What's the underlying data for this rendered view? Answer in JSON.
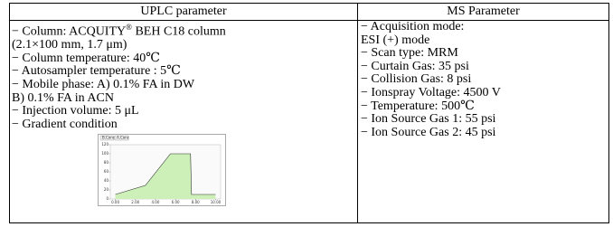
{
  "headers": [
    "UPLC parameter",
    "MS Parameter"
  ],
  "left": {
    "column": [
      "− Column: ACQUITY",
      "®",
      " BEH C18 column"
    ],
    "lines": [
      "(2.1×100 mm, 1.7 μm)",
      "− Column temperature: 40℃",
      "− Autosampler temperature : 5℃",
      "− Mobile phase: A) 0.1% FA in DW",
      "B) 0.1% FA in ACN",
      "− Injection volume: 5 μL",
      "− Gradient condition"
    ]
  },
  "right": {
    "lines": [
      "− Acquisition mode:",
      "ESI (+) mode",
      "− Scan type: MRM",
      "− Curtain Gas: 35 psi",
      "− Collision Gas: 8 psi",
      "− Ionspray Voltage: 4500 V",
      "− Temperature: 500℃",
      "− Ion Source Gas 1: 55 psi",
      "− Ion Source Gas 2: 45 psi"
    ]
  },
  "chart_data": {
    "type": "area",
    "tabs": [
      "B.Conc",
      "A.Conc"
    ],
    "color": "#ccf0b8",
    "x": [
      0,
      3,
      5.5,
      7.5,
      7.6,
      10
    ],
    "values": [
      10,
      30,
      100,
      100,
      10,
      10
    ],
    "xlim": [
      -0.5,
      10.5
    ],
    "ylim": [
      0,
      120
    ],
    "xticks": [
      {
        "value": 0,
        "label": "0.00"
      },
      {
        "value": 2,
        "label": "2.00"
      },
      {
        "value": 4,
        "label": "4.00"
      },
      {
        "value": 6,
        "label": "6.00"
      },
      {
        "value": 8,
        "label": "8.00"
      },
      {
        "value": 10,
        "label": "10.00"
      }
    ],
    "yticks": [
      0,
      20,
      40,
      60,
      80,
      100,
      120
    ]
  }
}
